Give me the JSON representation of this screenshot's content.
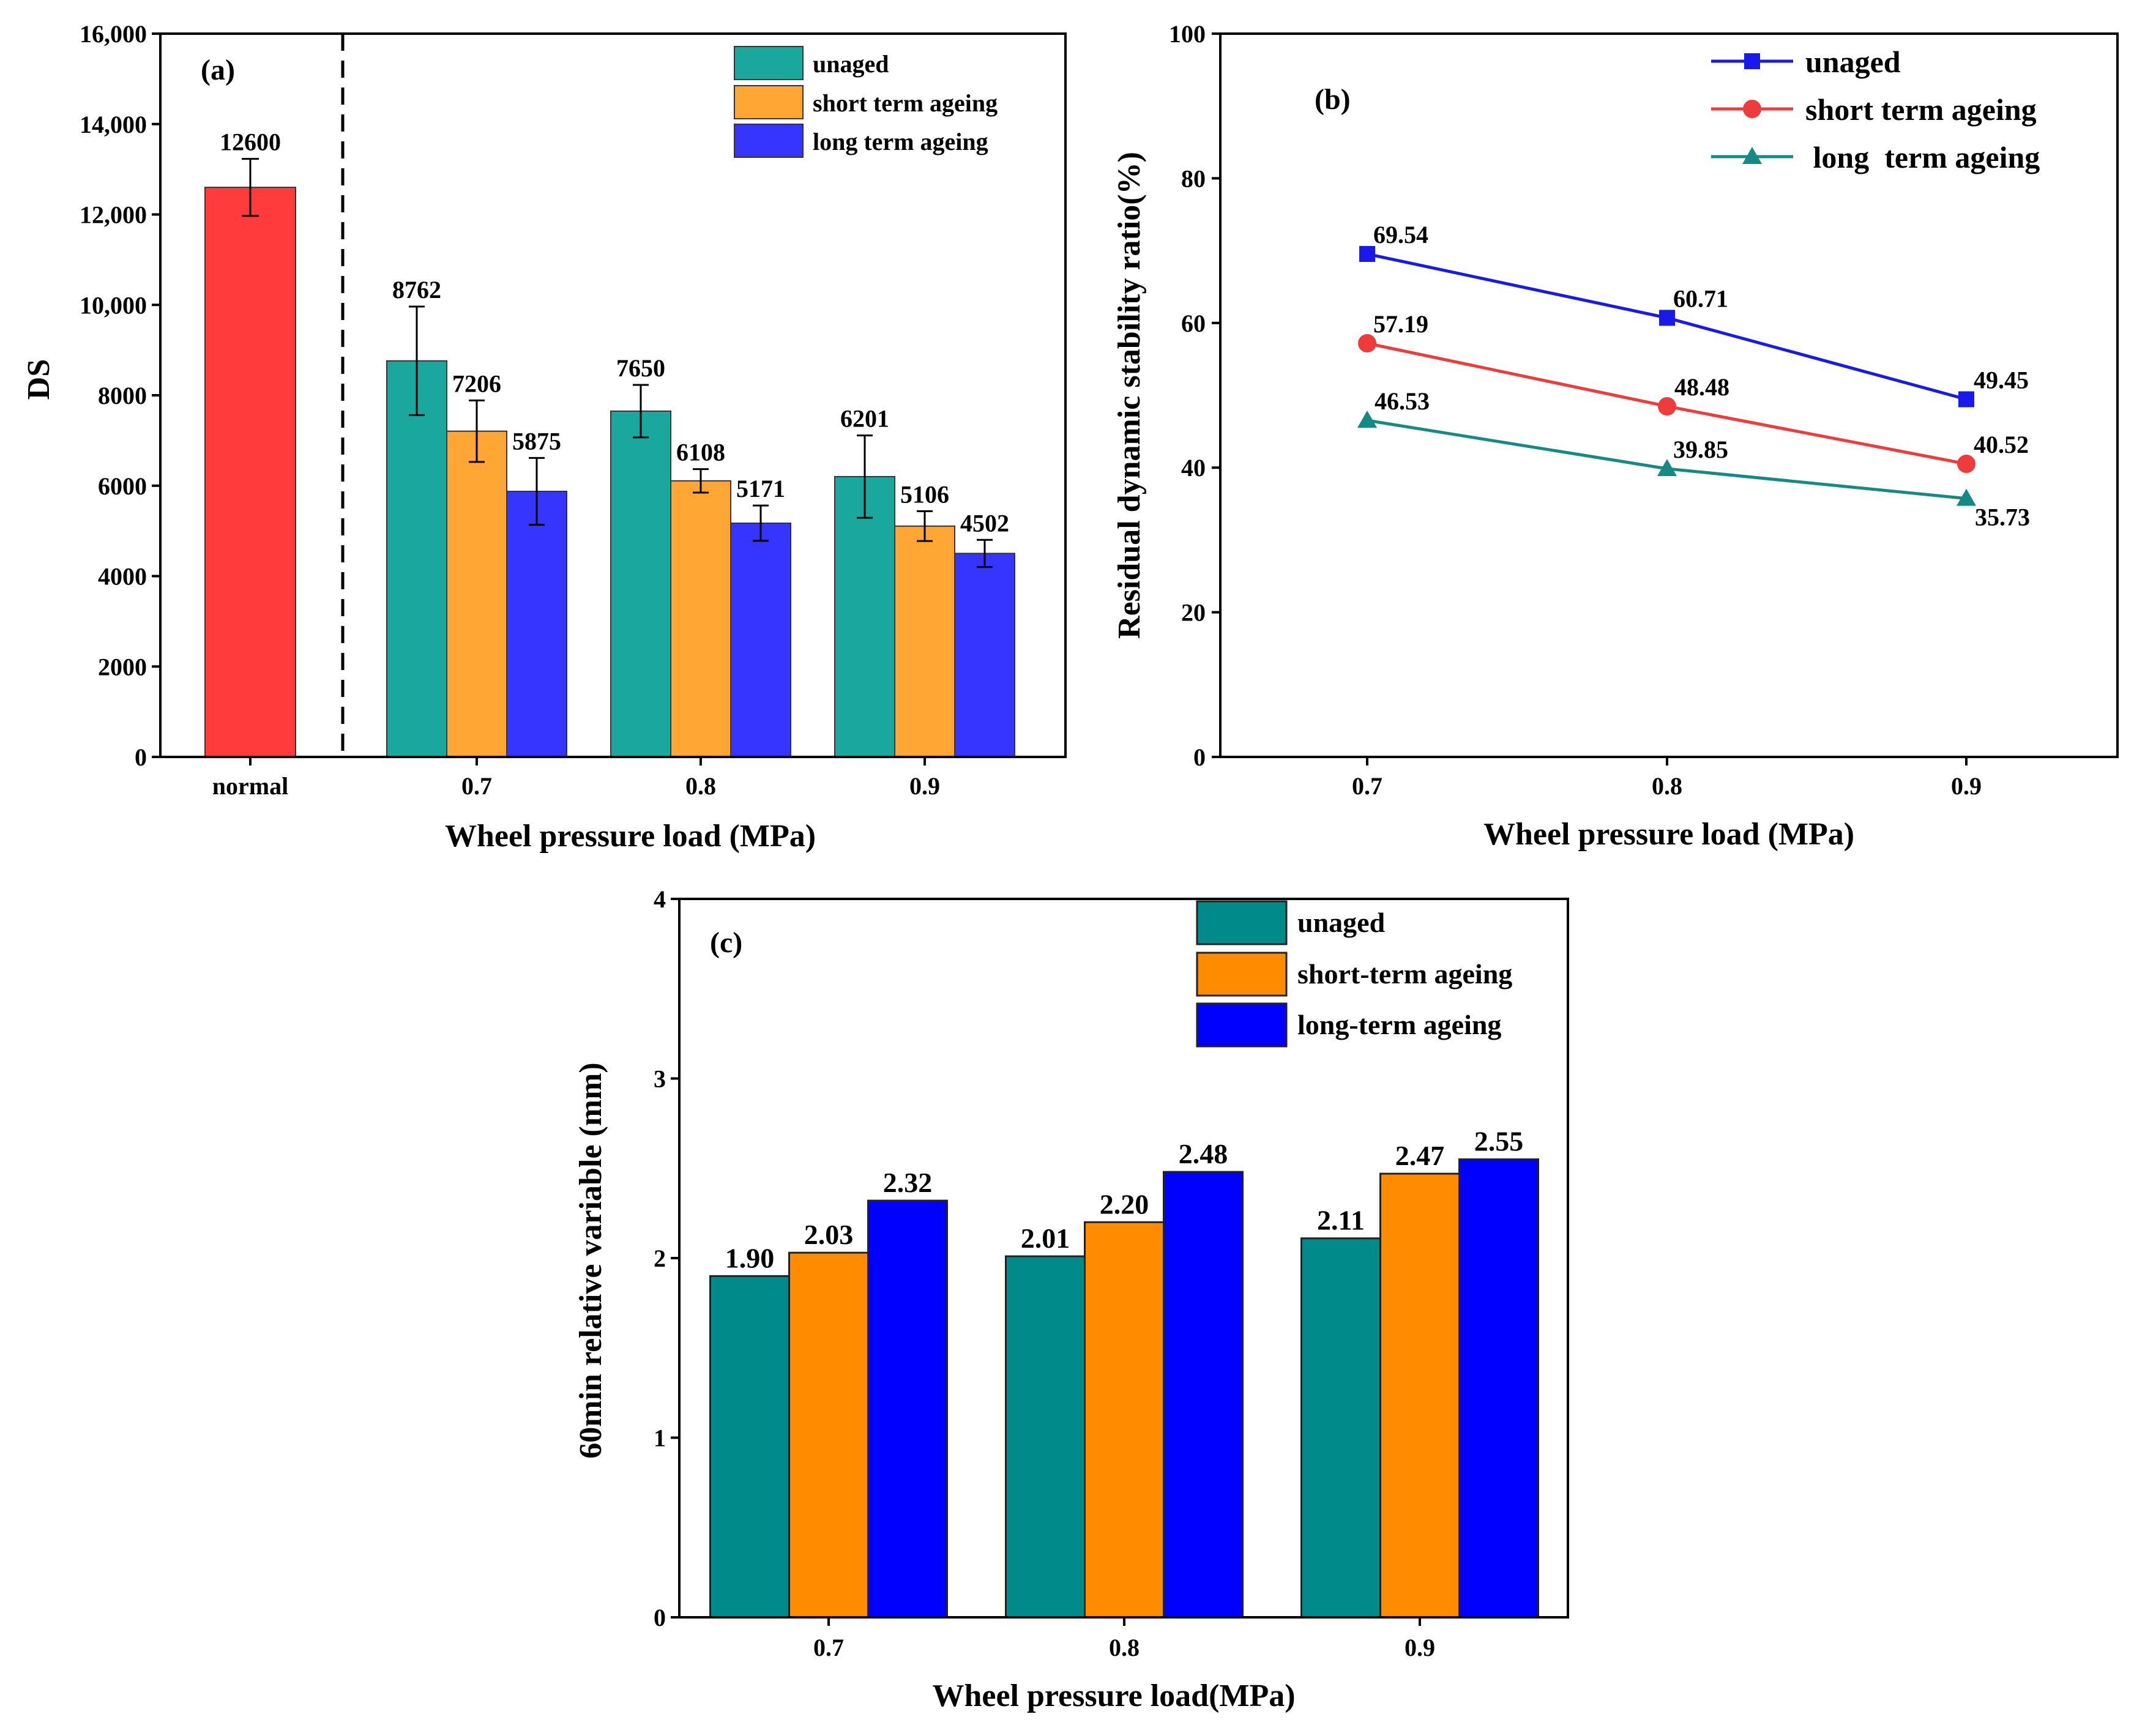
{
  "colors": {
    "normal": "#ff3b3b",
    "unaged_a": "#19a79e",
    "short_a": "#ffa635",
    "long_a": "#3535ff",
    "unaged_b": "#1919ea",
    "short_b": "#ee3b3b",
    "long_b": "#158a85",
    "unaged_c": "#008b8b",
    "short_c": "#ff8c00",
    "long_c": "#0000ff"
  },
  "chart_data": [
    {
      "panel": "(a)",
      "type": "bar",
      "title": "",
      "xlabel": "Wheel pressure load (MPa)",
      "ylabel": "DS",
      "ylim": [
        0,
        16000
      ],
      "yticks": [
        "0",
        "2000",
        "4000",
        "6000",
        "8000",
        "10,000",
        "12,000",
        "14,000",
        "16,000"
      ],
      "reference": {
        "category": "normal",
        "value": 12600,
        "error": 630,
        "label": "12600"
      },
      "categories": [
        "0.7",
        "0.8",
        "0.9"
      ],
      "series": [
        {
          "name": "unaged",
          "values": [
            8762,
            7650,
            6201
          ],
          "errors": [
            1200,
            580,
            910
          ],
          "labels": [
            "8762",
            "7650",
            "6201"
          ]
        },
        {
          "name": "short term ageing",
          "values": [
            7206,
            6108,
            5106
          ],
          "errors": [
            680,
            260,
            330
          ],
          "labels": [
            "7206",
            "6108",
            "5106"
          ]
        },
        {
          "name": "long term ageing",
          "values": [
            5875,
            5171,
            4502
          ],
          "errors": [
            740,
            390,
            300
          ],
          "labels": [
            "5875",
            "5171",
            "4502"
          ]
        }
      ],
      "legend": "top-right",
      "separator": "dashed line between normal and 0.7"
    },
    {
      "panel": "(b)",
      "type": "line",
      "title": "",
      "xlabel": "Wheel pressure load (MPa)",
      "ylabel": "Residual dynamic stability ratio(%)",
      "ylim": [
        0,
        100
      ],
      "yticks": [
        "0",
        "20",
        "40",
        "60",
        "80",
        "100"
      ],
      "x": [
        "0.7",
        "0.8",
        "0.9"
      ],
      "series": [
        {
          "name": "unaged",
          "marker": "square",
          "values": [
            69.54,
            60.71,
            49.45
          ],
          "labels": [
            "69.54",
            "60.71",
            "49.45"
          ]
        },
        {
          "name": "short term ageing",
          "marker": "circle",
          "values": [
            57.19,
            48.48,
            40.52
          ],
          "labels": [
            "57.19",
            "48.48",
            "40.52"
          ]
        },
        {
          "name": " long  term ageing",
          "marker": "triangle",
          "values": [
            46.53,
            39.85,
            35.73
          ],
          "labels": [
            "46.53",
            "39.85",
            "35.73"
          ]
        }
      ],
      "legend": "top-right"
    },
    {
      "panel": "(c)",
      "type": "bar",
      "title": "",
      "xlabel": "Wheel pressure load(MPa)",
      "ylabel": "60min relative variable (mm)",
      "ylim": [
        0,
        4
      ],
      "yticks": [
        "0",
        "1",
        "2",
        "3",
        "4"
      ],
      "categories": [
        "0.7",
        "0.8",
        "0.9"
      ],
      "series": [
        {
          "name": "unaged",
          "values": [
            1.9,
            2.01,
            2.11
          ],
          "labels": [
            "1.90",
            "2.01",
            "2.11"
          ]
        },
        {
          "name": "short-term ageing",
          "values": [
            2.03,
            2.2,
            2.47
          ],
          "labels": [
            "2.03",
            "2.20",
            "2.47"
          ]
        },
        {
          "name": "long-term ageing",
          "values": [
            2.32,
            2.48,
            2.55
          ],
          "labels": [
            "2.32",
            "2.48",
            "2.55"
          ]
        }
      ],
      "legend": "top-right"
    }
  ]
}
